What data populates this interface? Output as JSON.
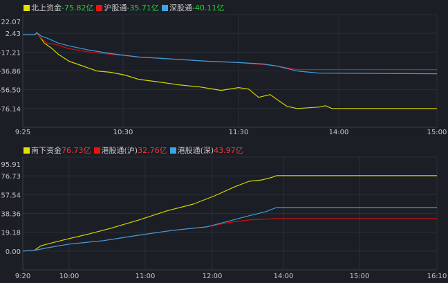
{
  "chart_data": [
    {
      "type": "line",
      "legend_position": "top-left",
      "grid": true,
      "ylim": [
        -95.78,
        22.07
      ],
      "y_ticks": [
        "22.07",
        "2.43",
        "-17.21",
        "-36.86",
        "-56.50",
        "-76.14"
      ],
      "x_ticks": [
        "9:25",
        "10:30",
        "11:30",
        "14:00",
        "15:00"
      ],
      "lunch_break": [
        "11:30",
        "13:00"
      ],
      "legend": [
        {
          "label": "北上资金",
          "value": "-75.82亿",
          "color": "#e1e100",
          "sign": "neg"
        },
        {
          "label": "沪股通",
          "value": "-35.71亿",
          "color": "#e8140f",
          "sign": "neg"
        },
        {
          "label": "深股通",
          "value": "-40.11亿",
          "color": "#3aa5e8",
          "sign": "neg"
        }
      ],
      "series": [
        {
          "name": "北上资金",
          "color": "#d6d600",
          "points": [
            [
              "9:25",
              1.0
            ],
            [
              "9:33",
              1.0
            ],
            [
              "9:34",
              3.2
            ],
            [
              "9:36",
              -1.2
            ],
            [
              "9:39",
              -7.8
            ],
            [
              "9:44",
              -13.6
            ],
            [
              "9:48",
              -19.4
            ],
            [
              "9:55",
              -26.7
            ],
            [
              "10:04",
              -31.8
            ],
            [
              "10:13",
              -36.9
            ],
            [
              "10:22",
              -38.3
            ],
            [
              "10:31",
              -41.2
            ],
            [
              "10:38",
              -45.6
            ],
            [
              "10:49",
              -48.5
            ],
            [
              "10:59",
              -51.4
            ],
            [
              "11:10",
              -53.6
            ],
            [
              "11:21",
              -57.2
            ],
            [
              "11:30",
              -54.3
            ],
            [
              "13:06",
              -55.8
            ],
            [
              "13:12",
              -64.5
            ],
            [
              "13:19",
              -61.6
            ],
            [
              "13:23",
              -66.7
            ],
            [
              "13:29",
              -73.9
            ],
            [
              "13:35",
              -76.1
            ],
            [
              "13:48",
              -74.7
            ],
            [
              "13:52",
              -73.2
            ],
            [
              "13:56",
              -76.1
            ],
            [
              "15:00",
              -76.1
            ]
          ]
        },
        {
          "name": "沪股通",
          "color": "#d41010",
          "points": [
            [
              "9:25",
              1.0
            ],
            [
              "9:33",
              1.0
            ],
            [
              "9:34",
              2.4
            ],
            [
              "9:37",
              -2.7
            ],
            [
              "9:41",
              -7.8
            ],
            [
              "9:46",
              -9.2
            ],
            [
              "9:55",
              -13.6
            ],
            [
              "10:08",
              -17.2
            ],
            [
              "10:22",
              -19.4
            ],
            [
              "10:38",
              -22.3
            ],
            [
              "10:56",
              -24.5
            ],
            [
              "11:14",
              -26.7
            ],
            [
              "11:30",
              -28.1
            ],
            [
              "13:15",
              -30.3
            ],
            [
              "13:23",
              -31.8
            ],
            [
              "13:35",
              -35.4
            ],
            [
              "15:00",
              -35.4
            ]
          ]
        },
        {
          "name": "深股通",
          "color": "#3a9ee0",
          "points": [
            [
              "9:25",
              1.0
            ],
            [
              "9:33",
              1.0
            ],
            [
              "9:34",
              3.2
            ],
            [
              "9:37",
              -0.5
            ],
            [
              "9:41",
              -2.7
            ],
            [
              "9:48",
              -7.8
            ],
            [
              "9:55",
              -10.7
            ],
            [
              "10:08",
              -15.1
            ],
            [
              "10:22",
              -18.7
            ],
            [
              "10:38",
              -22.3
            ],
            [
              "10:56",
              -24.5
            ],
            [
              "11:14",
              -26.7
            ],
            [
              "11:30",
              -28.1
            ],
            [
              "13:15",
              -29.6
            ],
            [
              "13:23",
              -31.8
            ],
            [
              "13:35",
              -36.9
            ],
            [
              "13:48",
              -39.1
            ],
            [
              "15:00",
              -39.8
            ]
          ]
        }
      ]
    },
    {
      "type": "line",
      "legend_position": "top-left",
      "grid": true,
      "ylim": [
        -19.18,
        95.91
      ],
      "y_ticks": [
        "95.91",
        "76.73",
        "57.54",
        "38.36",
        "19.18",
        "0.00"
      ],
      "x_ticks": [
        "9:20",
        "10:00",
        "11:00",
        "12:00",
        "14:00",
        "15:00",
        "16:10"
      ],
      "lunch_break": [
        "12:00",
        "13:00"
      ],
      "legend": [
        {
          "label": "南下资金",
          "value": "76.73亿",
          "color": "#e1e100",
          "sign": "pos"
        },
        {
          "label": "港股通(沪)",
          "value": "32.76亿",
          "color": "#e8140f",
          "sign": "pos"
        },
        {
          "label": "港股通(深)",
          "value": "43.97亿",
          "color": "#3aa5e8",
          "sign": "pos"
        }
      ],
      "series": [
        {
          "name": "南下资金",
          "color": "#d6d600",
          "points": [
            [
              "9:20",
              0
            ],
            [
              "9:30",
              0.7
            ],
            [
              "9:36",
              5.6
            ],
            [
              "9:48",
              9.2
            ],
            [
              "10:00",
              12.7
            ],
            [
              "10:16",
              17.6
            ],
            [
              "10:33",
              23.3
            ],
            [
              "10:55",
              31.7
            ],
            [
              "11:19",
              40.9
            ],
            [
              "11:43",
              47.9
            ],
            [
              "13:02",
              56.4
            ],
            [
              "13:19",
              65.6
            ],
            [
              "13:31",
              71.2
            ],
            [
              "13:42",
              72.6
            ],
            [
              "13:51",
              75.5
            ],
            [
              "13:54",
              76.9
            ],
            [
              "16:10",
              76.9
            ]
          ]
        },
        {
          "name": "港股通(沪)",
          "color": "#d41010",
          "points": [
            [
              "9:20",
              0
            ],
            [
              "9:30",
              0.7
            ],
            [
              "9:42",
              3.5
            ],
            [
              "10:00",
              7.1
            ],
            [
              "10:27",
              10.6
            ],
            [
              "10:55",
              16.2
            ],
            [
              "11:25",
              21.2
            ],
            [
              "11:55",
              24.7
            ],
            [
              "13:13",
              28.9
            ],
            [
              "13:31",
              31.7
            ],
            [
              "13:42",
              32.4
            ],
            [
              "13:54",
              33.1
            ],
            [
              "16:10",
              33.1
            ]
          ]
        },
        {
          "name": "港股通(深)",
          "color": "#3a9ee0",
          "points": [
            [
              "9:20",
              0
            ],
            [
              "9:30",
              0.7
            ],
            [
              "9:42",
              3.5
            ],
            [
              "10:00",
              7.1
            ],
            [
              "10:27",
              10.6
            ],
            [
              "10:55",
              16.2
            ],
            [
              "11:25",
              21.2
            ],
            [
              "11:55",
              24.7
            ],
            [
              "13:13",
              30.3
            ],
            [
              "13:31",
              36.0
            ],
            [
              "13:45",
              40.2
            ],
            [
              "13:54",
              44.4
            ],
            [
              "16:10",
              44.4
            ]
          ]
        }
      ]
    }
  ]
}
